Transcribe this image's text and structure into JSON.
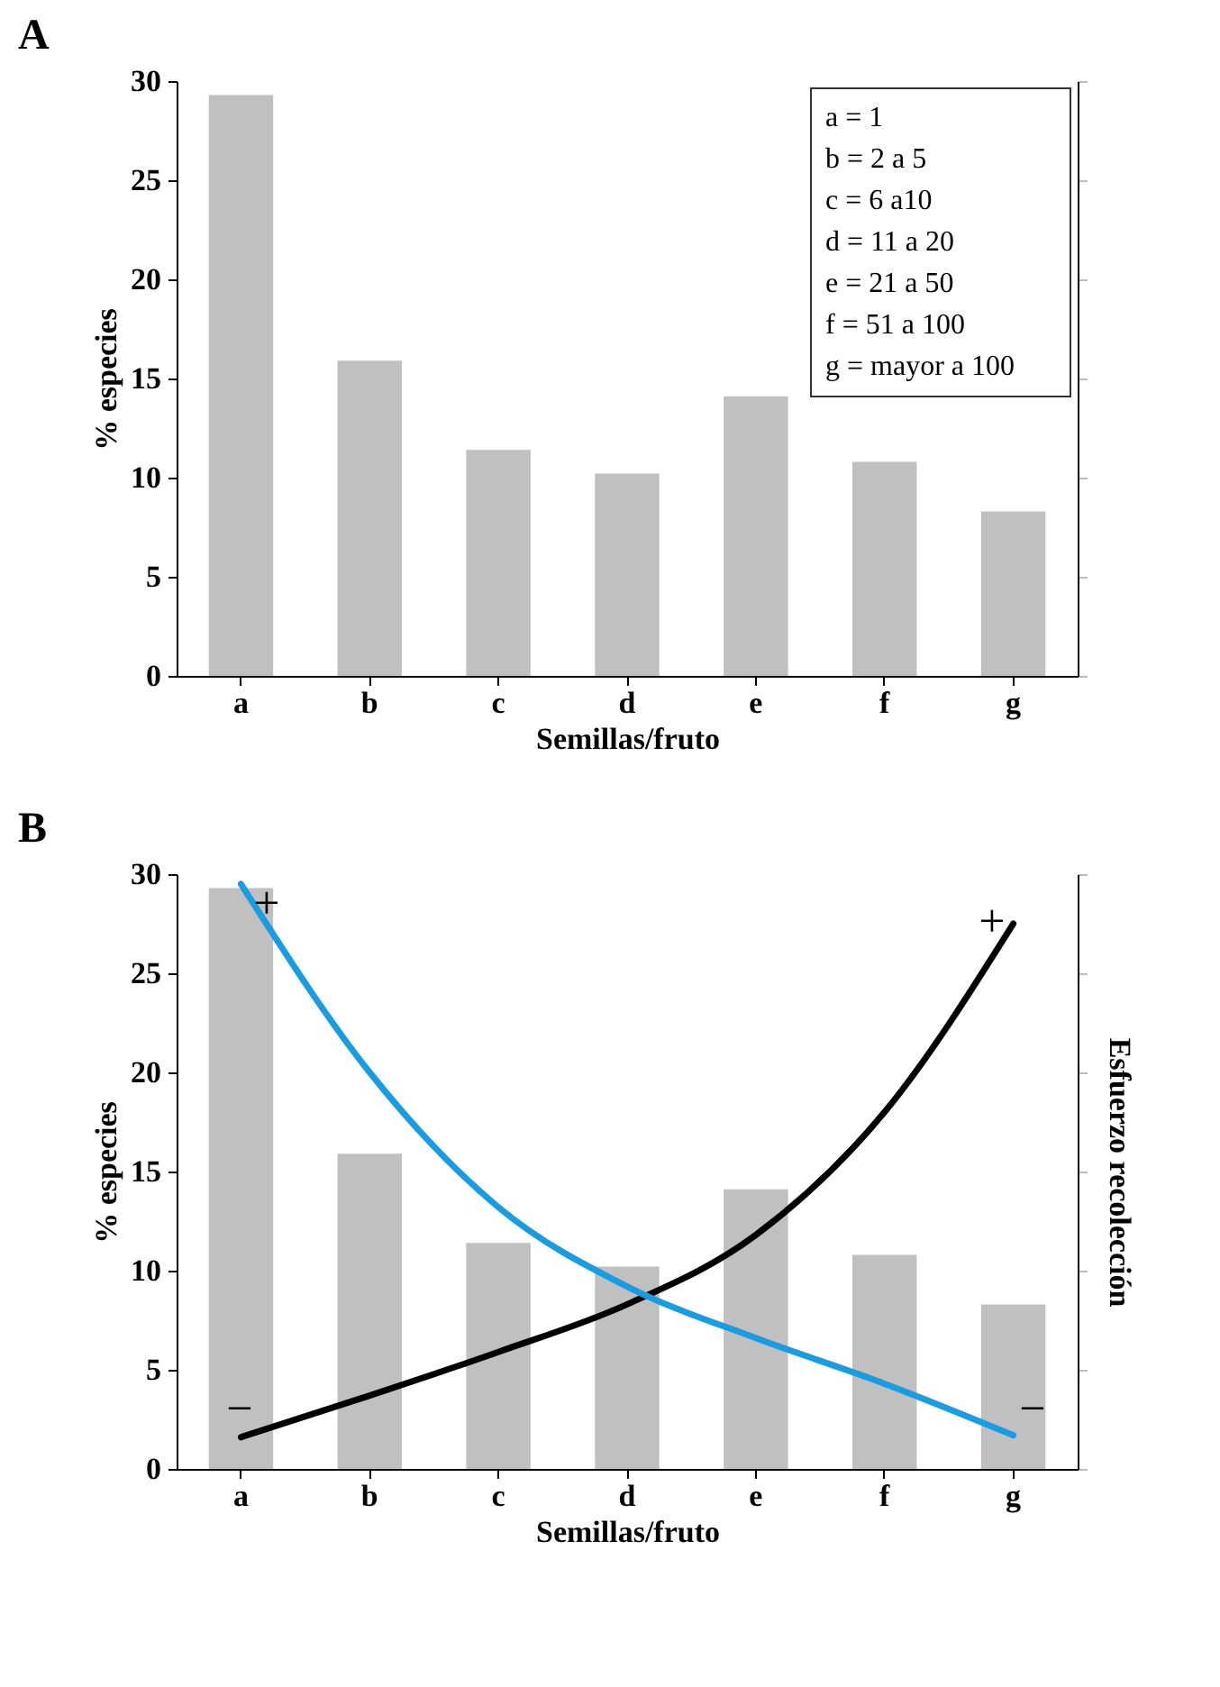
{
  "chart_data": [
    {
      "type": "bar",
      "title": "A",
      "xlabel": "Semillas/fruto",
      "ylabel": "% especies",
      "categories": [
        "a",
        "b",
        "c",
        "d",
        "e",
        "f",
        "g"
      ],
      "series": [
        {
          "color": "#c0c0c0",
          "values": [
            29.3,
            15.9,
            11.4,
            10.2,
            14.1,
            10.8,
            8.3
          ]
        }
      ],
      "ylim": [
        0,
        30
      ],
      "yticks": [
        0,
        5,
        10,
        15,
        20,
        25,
        30
      ],
      "grid": false,
      "annotations": [
        "a = 1",
        "b = 2 a 5",
        "c = 6 a10",
        "d = 11 a 20",
        "e = 21 a 50",
        "f = 51 a 100",
        "g = mayor a 100"
      ]
    },
    {
      "type": "bar",
      "title": "B",
      "xlabel": "Semillas/fruto",
      "ylabel": "% especies",
      "y2label": "Esfuerzo recolección",
      "categories": [
        "a",
        "b",
        "c",
        "d",
        "e",
        "f",
        "g"
      ],
      "series": [
        {
          "color": "#c0c0c0",
          "values": [
            29.3,
            15.9,
            11.4,
            10.2,
            14.1,
            10.8,
            8.3
          ]
        },
        {
          "type": "line",
          "color": "#000000",
          "values": [
            1.6,
            3.7,
            5.9,
            8.3,
            11.8,
            18,
            27.5
          ]
        },
        {
          "type": "line",
          "color": "#1a9de0",
          "values": [
            29.5,
            20,
            13.2,
            9.2,
            6.6,
            4.3,
            1.7
          ]
        }
      ],
      "ylim": [
        0,
        30
      ],
      "yticks": [
        0,
        5,
        10,
        15,
        20,
        25,
        30
      ],
      "grid": false,
      "annotations": [
        "+",
        "−",
        "+",
        "−"
      ]
    }
  ]
}
